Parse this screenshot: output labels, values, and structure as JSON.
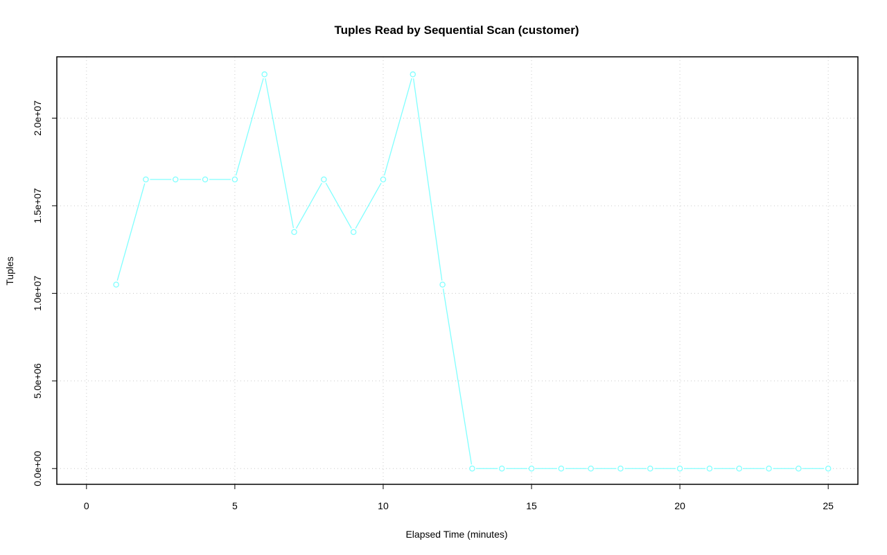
{
  "chart_data": {
    "type": "line",
    "title": "Tuples Read by Sequential Scan (customer)",
    "xlabel": "Elapsed Time (minutes)",
    "ylabel": "Tuples",
    "xlim": [
      -1,
      26
    ],
    "ylim": [
      -900000,
      23500000
    ],
    "xticks": [
      0,
      5,
      10,
      15,
      20,
      25
    ],
    "xtick_labels": [
      "0",
      "5",
      "10",
      "15",
      "20",
      "25"
    ],
    "yticks": [
      0,
      5000000,
      10000000,
      15000000,
      20000000
    ],
    "ytick_labels": [
      "0.0e+00",
      "5.0e+06",
      "1.0e+07",
      "1.5e+07",
      "2.0e+07"
    ],
    "grid": true,
    "series": [
      {
        "color": "#80ffff",
        "x": [
          1,
          2,
          3,
          4,
          5,
          6,
          7,
          8,
          9,
          10,
          11,
          12,
          13,
          14,
          15,
          16,
          17,
          18,
          19,
          20,
          21,
          22,
          23,
          24,
          25
        ],
        "y": [
          10500000,
          16500000,
          16500000,
          16500000,
          16500000,
          22500000,
          13500000,
          16500000,
          13500000,
          16500000,
          22500000,
          10500000,
          0,
          0,
          0,
          0,
          0,
          0,
          0,
          0,
          0,
          0,
          0,
          0,
          0
        ]
      }
    ]
  }
}
